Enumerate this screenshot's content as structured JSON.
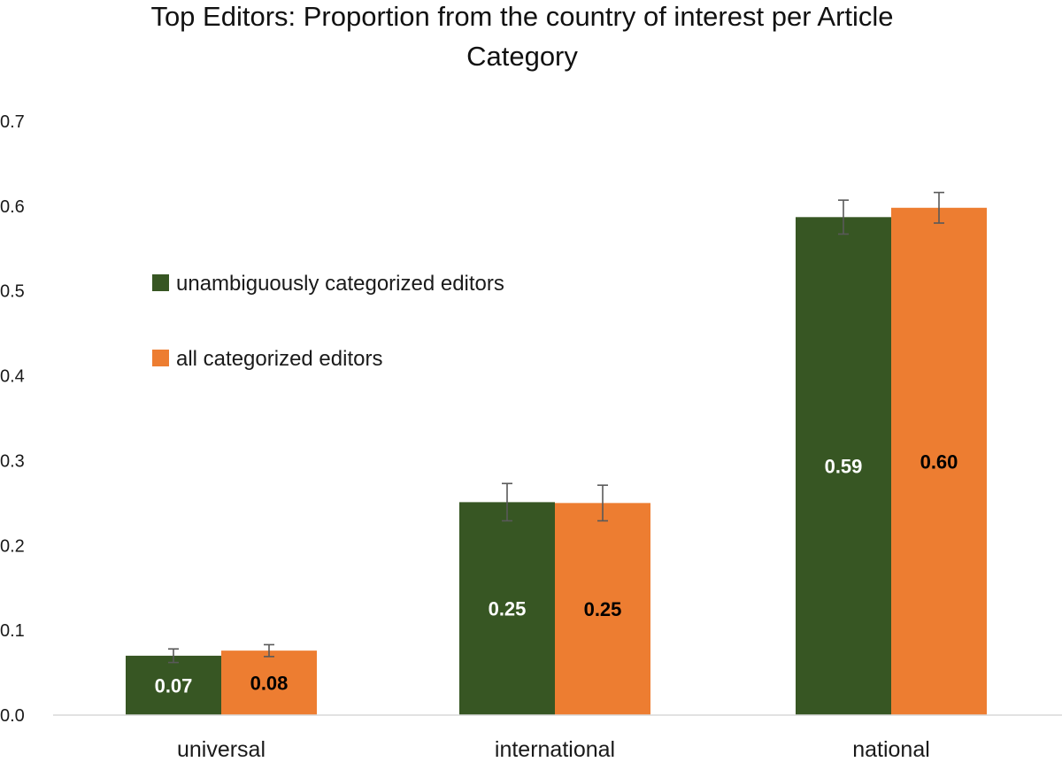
{
  "chart_data": {
    "type": "bar",
    "title_lines": [
      "Top Editors: Proportion from the country of interest per Article",
      "Category"
    ],
    "xlabel": "",
    "ylabel": "",
    "ylim": [
      0,
      0.7
    ],
    "yticks": [
      "0.0",
      "0.1",
      "0.2",
      "0.3",
      "0.4",
      "0.5",
      "0.6",
      "0.7"
    ],
    "grid": false,
    "legend_position": "upper-left",
    "categories": [
      "universal",
      "international",
      "national"
    ],
    "series": [
      {
        "name": "unambiguously categorized editors",
        "color": "#375623",
        "label_color": "#ffffff",
        "values": [
          0.07,
          0.251,
          0.587
        ],
        "error": [
          0.008,
          0.022,
          0.02
        ],
        "labels": [
          "0.07",
          "0.25",
          "0.59"
        ]
      },
      {
        "name": "all categorized editors",
        "color": "#ed7d31",
        "label_color": "#000000",
        "values": [
          0.076,
          0.25,
          0.598
        ],
        "error": [
          0.007,
          0.021,
          0.018
        ],
        "labels": [
          "0.08",
          "0.25",
          "0.60"
        ]
      }
    ],
    "error_bar_color": "#595959"
  }
}
